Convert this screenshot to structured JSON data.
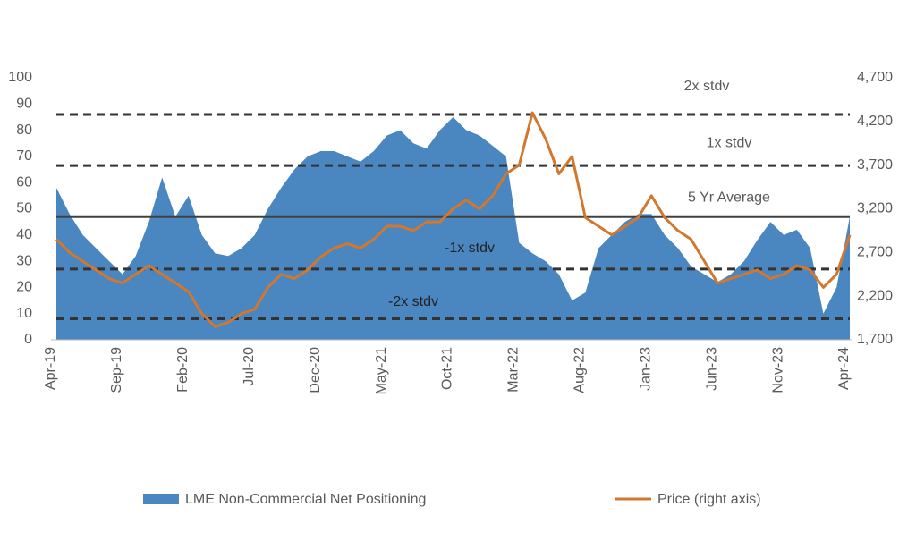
{
  "chart_data": {
    "type": "area-line",
    "categories": [
      "Apr-19",
      null,
      null,
      null,
      null,
      "Sep-19",
      null,
      null,
      null,
      null,
      "Feb-20",
      null,
      null,
      null,
      null,
      "Jul-20",
      null,
      null,
      null,
      null,
      "Dec-20",
      null,
      null,
      null,
      null,
      "May-21",
      null,
      null,
      null,
      null,
      "Oct-21",
      null,
      null,
      null,
      null,
      "Mar-22",
      null,
      null,
      null,
      null,
      "Aug-22",
      null,
      null,
      null,
      null,
      "Jan-23",
      null,
      null,
      null,
      null,
      "Jun-23",
      null,
      null,
      null,
      null,
      "Nov-23",
      null,
      null,
      null,
      null,
      "Apr-24"
    ],
    "series": [
      {
        "name": "LME Non-Commercial Net Positioning",
        "color": "#4a86c0",
        "axis": "y",
        "values": [
          58,
          48,
          40,
          35,
          30,
          25,
          32,
          45,
          62,
          47,
          55,
          40,
          33,
          32,
          35,
          40,
          50,
          58,
          65,
          70,
          72,
          72,
          70,
          68,
          72,
          78,
          80,
          75,
          73,
          80,
          85,
          80,
          78,
          74,
          70,
          37,
          33,
          30,
          25,
          15,
          18,
          35,
          40,
          45,
          48,
          48,
          40,
          35,
          28,
          25,
          22,
          25,
          30,
          38,
          45,
          40,
          42,
          35,
          10,
          20,
          47
        ]
      },
      {
        "name": "Price (right axis)",
        "color": "#d2782e",
        "axis": "y2",
        "values": [
          2850,
          2700,
          2600,
          2500,
          2400,
          2350,
          2450,
          2550,
          2450,
          2350,
          2250,
          2000,
          1850,
          1900,
          2000,
          2050,
          2300,
          2450,
          2400,
          2500,
          2650,
          2750,
          2800,
          2750,
          2850,
          3000,
          3000,
          2950,
          3050,
          3050,
          3200,
          3300,
          3200,
          3350,
          3600,
          3700,
          4300,
          4000,
          3600,
          3800,
          3100,
          3000,
          2900,
          3000,
          3100,
          3350,
          3100,
          2950,
          2850,
          2600,
          2350,
          2400,
          2450,
          2500,
          2400,
          2450,
          2550,
          2500,
          2300,
          2450,
          2900
        ]
      }
    ],
    "annotations": [
      {
        "label": "2x stdv",
        "value": 86,
        "style": "dashed"
      },
      {
        "label": "1x stdv",
        "value": 66.5,
        "style": "dashed"
      },
      {
        "label": "5 Yr Average",
        "value": 47,
        "style": "solid"
      },
      {
        "label": "-1x stdv",
        "value": 27,
        "style": "dashed"
      },
      {
        "label": "-2x stdv",
        "value": 8,
        "style": "dashed"
      }
    ],
    "ylim": [
      0,
      100
    ],
    "yticks": [
      0,
      10,
      20,
      30,
      40,
      50,
      60,
      70,
      80,
      90,
      100
    ],
    "y2lim": [
      1700,
      4700
    ],
    "y2ticks": [
      {
        "value": 1700,
        "label": "1,700"
      },
      {
        "value": 2200,
        "label": "2,200"
      },
      {
        "value": 2700,
        "label": "2,700"
      },
      {
        "value": 3200,
        "label": "3,200"
      },
      {
        "value": 3700,
        "label": "3,700"
      },
      {
        "value": 4200,
        "label": "4,200"
      },
      {
        "value": 4700,
        "label": "4,700"
      }
    ],
    "legend": "bottom"
  }
}
